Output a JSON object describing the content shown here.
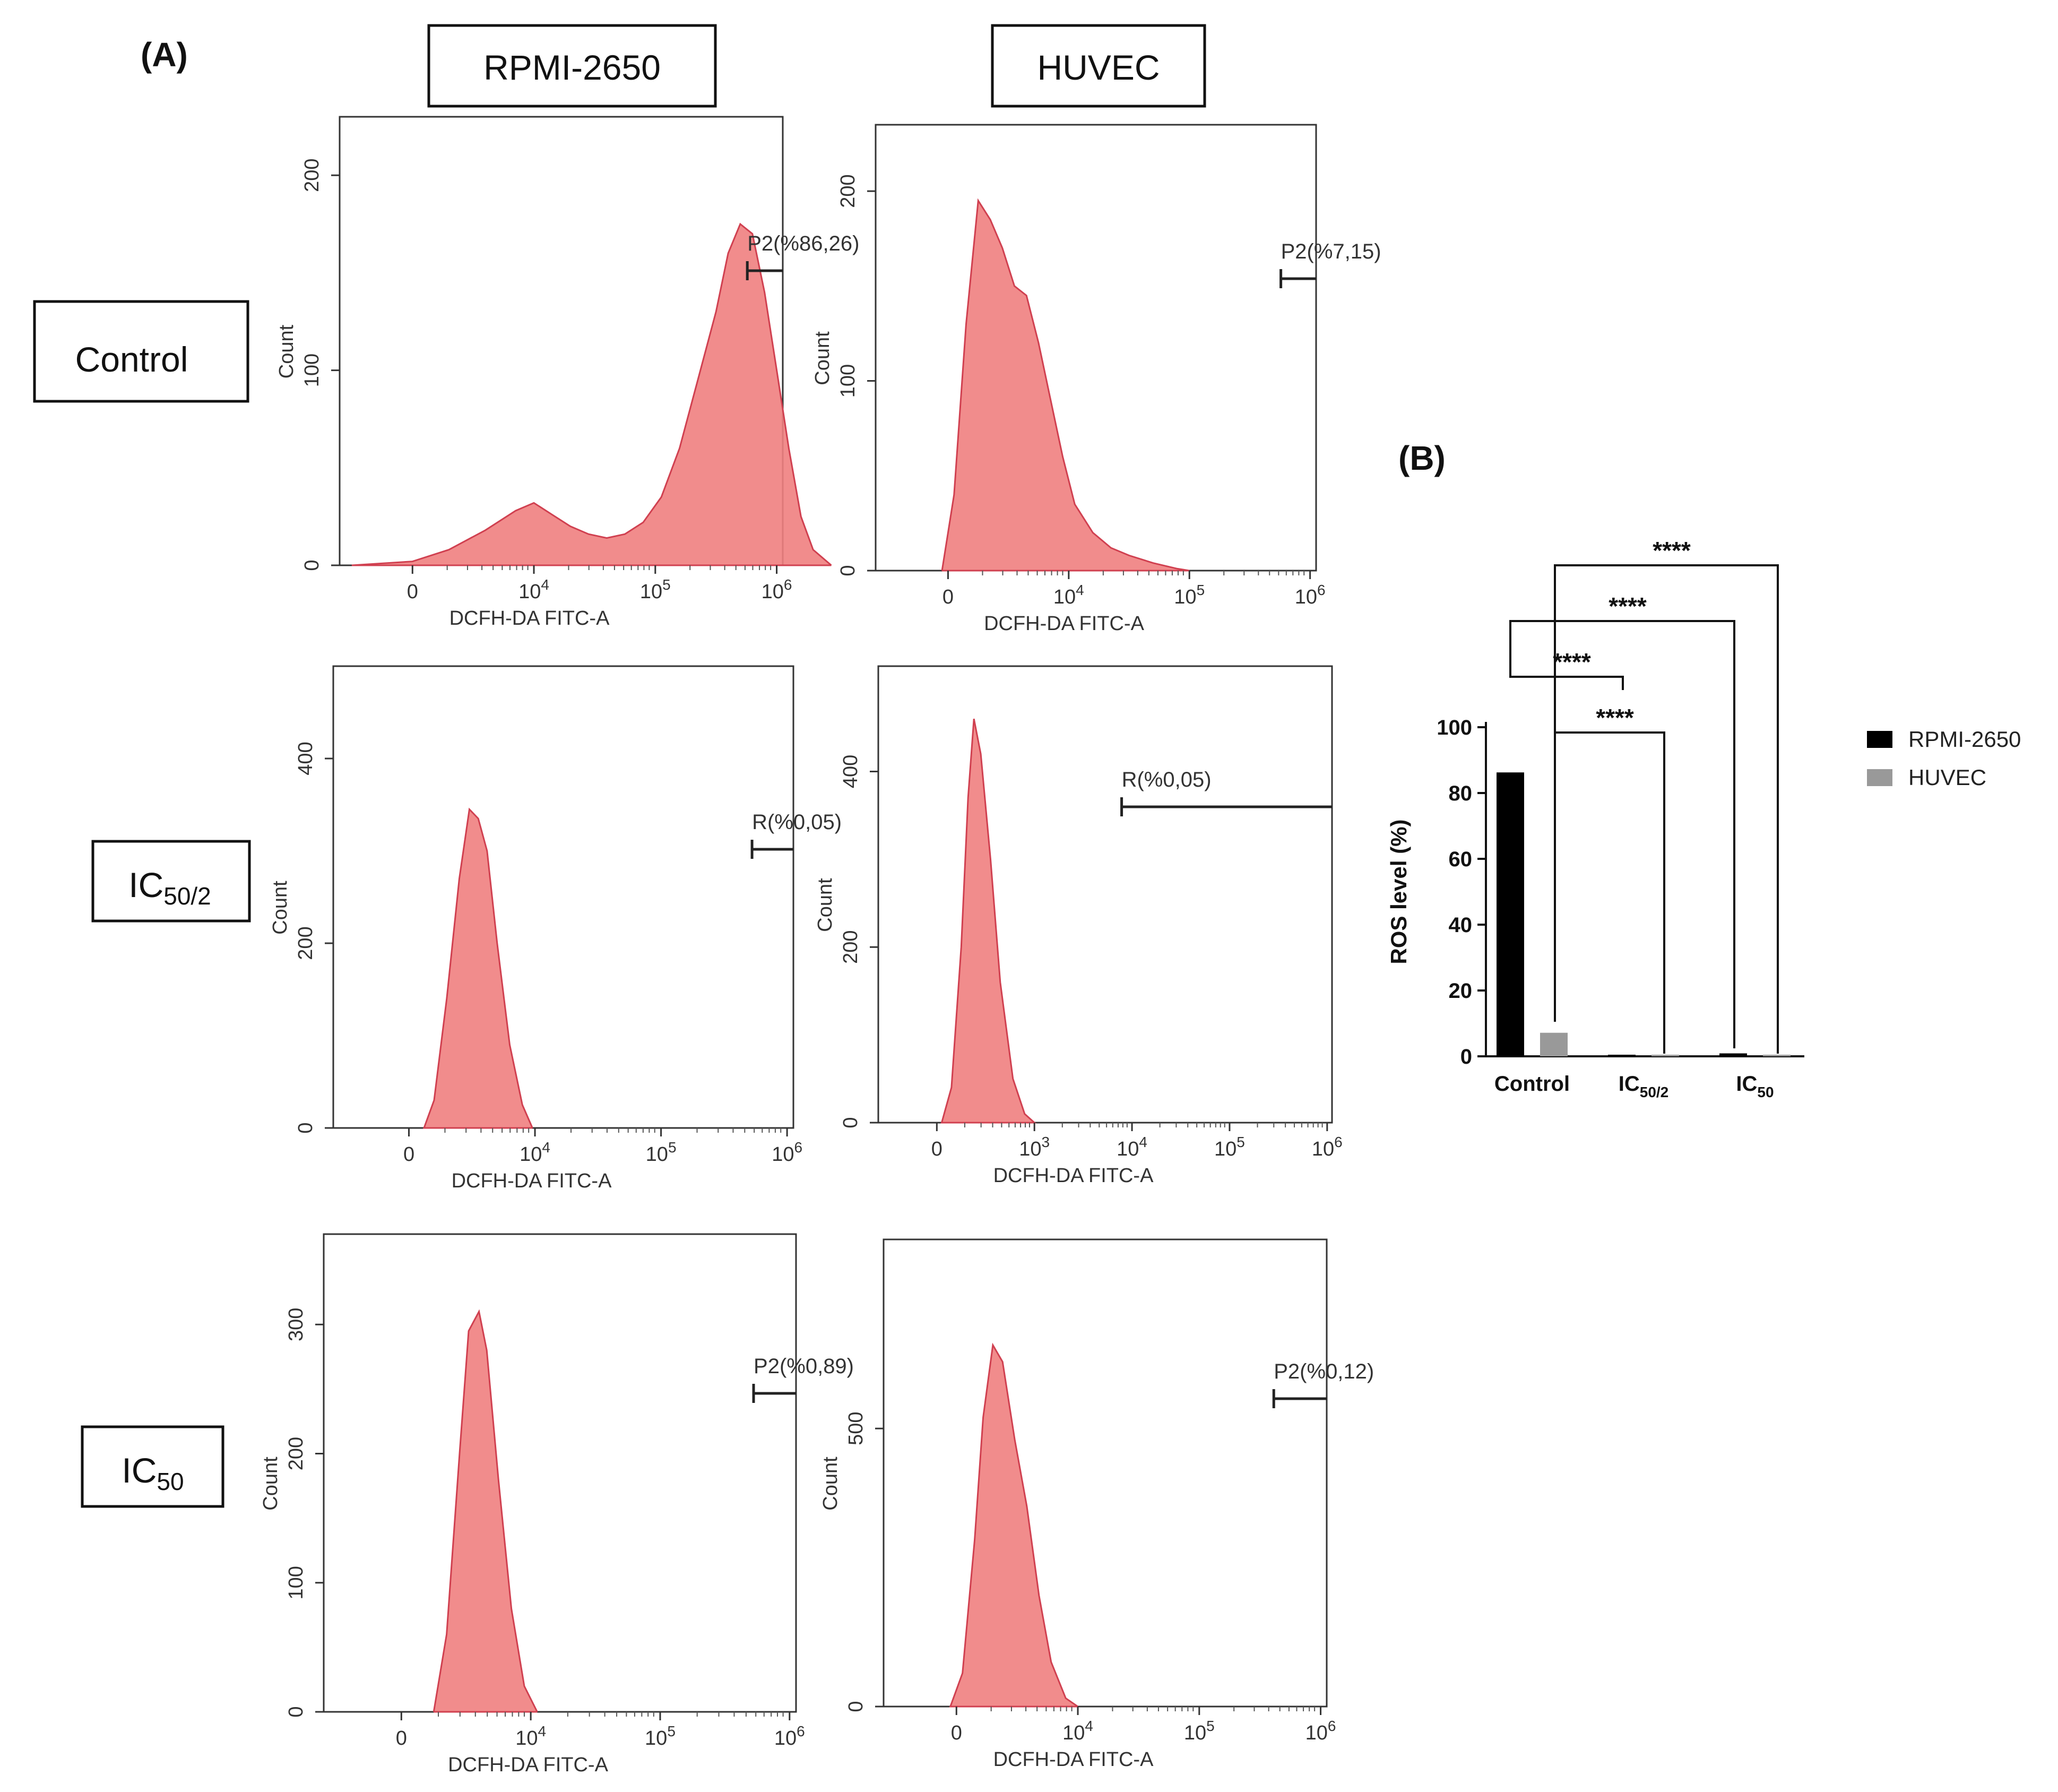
{
  "panel_a": {
    "letter": "(A)",
    "columns": [
      "RPMI-2650",
      "HUVEC"
    ],
    "rows": [
      {
        "name": "Control",
        "base": "Control",
        "sub": ""
      },
      {
        "name": "IC50/2",
        "base": "IC",
        "sub": "50/2"
      },
      {
        "name": "IC50",
        "base": "IC",
        "sub": "50"
      }
    ]
  },
  "panel_b": {
    "letter": "(B)"
  },
  "colors": {
    "histogram_fill": "#f08080",
    "histogram_stroke": "#d04050",
    "rpmi_bar": "#000000",
    "huvec_bar": "#999999"
  },
  "chart_data": [
    {
      "type": "histogram",
      "id": "rpmi-control",
      "cell_line": "RPMI-2650",
      "treatment": "Control",
      "xlabel": "DCFH-DA FITC-A",
      "ylabel": "Count",
      "x_ticks": [
        {
          "main": "0",
          "sup": ""
        },
        {
          "main": "10",
          "sup": "4"
        },
        {
          "main": "10",
          "sup": "5"
        },
        {
          "main": "10",
          "sup": "6"
        }
      ],
      "y_ticks": [
        "0",
        "100",
        "200"
      ],
      "ymax": 230,
      "gate": {
        "label": "P2(%86,26)",
        "start_decade": 3.9
      },
      "curve": [
        [
          -0.5,
          0
        ],
        [
          0,
          2
        ],
        [
          0.3,
          8
        ],
        [
          0.6,
          18
        ],
        [
          0.85,
          28
        ],
        [
          1.0,
          32
        ],
        [
          1.15,
          26
        ],
        [
          1.3,
          20
        ],
        [
          1.45,
          16
        ],
        [
          1.6,
          14
        ],
        [
          1.75,
          16
        ],
        [
          1.9,
          22
        ],
        [
          2.05,
          35
        ],
        [
          2.2,
          60
        ],
        [
          2.35,
          95
        ],
        [
          2.5,
          130
        ],
        [
          2.6,
          160
        ],
        [
          2.7,
          175
        ],
        [
          2.8,
          170
        ],
        [
          2.9,
          140
        ],
        [
          3.0,
          100
        ],
        [
          3.1,
          60
        ],
        [
          3.2,
          25
        ],
        [
          3.3,
          8
        ],
        [
          3.45,
          0
        ]
      ]
    },
    {
      "type": "histogram",
      "id": "huvec-control",
      "cell_line": "HUVEC",
      "treatment": "Control",
      "xlabel": "DCFH-DA FITC-A",
      "ylabel": "Count",
      "x_ticks": [
        {
          "main": "0",
          "sup": ""
        },
        {
          "main": "10",
          "sup": "4"
        },
        {
          "main": "10",
          "sup": "5"
        },
        {
          "main": "10",
          "sup": "6"
        }
      ],
      "y_ticks": [
        "0",
        "100",
        "200"
      ],
      "ymax": 235,
      "gate": {
        "label": "P2(%7,15)",
        "start_decade": 3.9
      },
      "curve": [
        [
          -0.05,
          0
        ],
        [
          0.05,
          40
        ],
        [
          0.15,
          130
        ],
        [
          0.25,
          195
        ],
        [
          0.35,
          185
        ],
        [
          0.45,
          170
        ],
        [
          0.55,
          150
        ],
        [
          0.65,
          145
        ],
        [
          0.75,
          120
        ],
        [
          0.85,
          90
        ],
        [
          0.95,
          60
        ],
        [
          1.05,
          35
        ],
        [
          1.2,
          20
        ],
        [
          1.35,
          12
        ],
        [
          1.5,
          8
        ],
        [
          1.7,
          4
        ],
        [
          1.9,
          1
        ],
        [
          2.0,
          0
        ]
      ]
    },
    {
      "type": "histogram",
      "id": "rpmi-ic50-2",
      "cell_line": "RPMI-2650",
      "treatment": "IC50/2",
      "xlabel": "DCFH-DA FITC-A",
      "ylabel": "Count",
      "x_ticks": [
        {
          "main": "0",
          "sup": ""
        },
        {
          "main": "10",
          "sup": "4"
        },
        {
          "main": "10",
          "sup": "5"
        },
        {
          "main": "10",
          "sup": "6"
        }
      ],
      "y_ticks": [
        "0",
        "200",
        "400"
      ],
      "ymax": 500,
      "gate": {
        "label": "R(%0,05)",
        "start_decade": 3.85
      },
      "curve": [
        [
          0.12,
          0
        ],
        [
          0.2,
          30
        ],
        [
          0.3,
          140
        ],
        [
          0.4,
          270
        ],
        [
          0.48,
          345
        ],
        [
          0.55,
          335
        ],
        [
          0.62,
          300
        ],
        [
          0.7,
          200
        ],
        [
          0.8,
          90
        ],
        [
          0.9,
          25
        ],
        [
          0.98,
          0
        ]
      ]
    },
    {
      "type": "histogram",
      "id": "huvec-ic50-2",
      "cell_line": "HUVEC",
      "treatment": "IC50/2",
      "xlabel": "DCFH-DA FITC-A",
      "ylabel": "Count",
      "x_ticks": [
        {
          "main": "0",
          "sup": ""
        },
        {
          "main": "10",
          "sup": "3"
        },
        {
          "main": "10",
          "sup": "4"
        },
        {
          "main": "10",
          "sup": "5"
        },
        {
          "main": "10",
          "sup": "6"
        }
      ],
      "y_ticks": [
        "0",
        "200",
        "400"
      ],
      "ymax": 520,
      "gate": {
        "label": "R(%0,05)",
        "start_decade": 2.7
      },
      "curve": [
        [
          0.05,
          0
        ],
        [
          0.15,
          40
        ],
        [
          0.25,
          200
        ],
        [
          0.32,
          370
        ],
        [
          0.38,
          460
        ],
        [
          0.45,
          420
        ],
        [
          0.55,
          300
        ],
        [
          0.65,
          160
        ],
        [
          0.78,
          50
        ],
        [
          0.9,
          10
        ],
        [
          1.0,
          0
        ]
      ]
    },
    {
      "type": "histogram",
      "id": "rpmi-ic50",
      "cell_line": "RPMI-2650",
      "treatment": "IC50",
      "xlabel": "DCFH-DA FITC-A",
      "ylabel": "Count",
      "x_ticks": [
        {
          "main": "0",
          "sup": ""
        },
        {
          "main": "10",
          "sup": "4"
        },
        {
          "main": "10",
          "sup": "5"
        },
        {
          "main": "10",
          "sup": "6"
        }
      ],
      "y_ticks": [
        "0",
        "100",
        "200",
        "300"
      ],
      "ymax": 370,
      "gate": {
        "label": "P2(%0,89)",
        "start_decade": 3.85
      },
      "curve": [
        [
          0.25,
          0
        ],
        [
          0.35,
          60
        ],
        [
          0.45,
          200
        ],
        [
          0.52,
          295
        ],
        [
          0.6,
          310
        ],
        [
          0.66,
          280
        ],
        [
          0.75,
          180
        ],
        [
          0.85,
          80
        ],
        [
          0.95,
          20
        ],
        [
          1.05,
          0
        ]
      ]
    },
    {
      "type": "histogram",
      "id": "huvec-ic50",
      "cell_line": "HUVEC",
      "treatment": "IC50",
      "xlabel": "DCFH-DA FITC-A",
      "ylabel": "Count",
      "x_ticks": [
        {
          "main": "0",
          "sup": ""
        },
        {
          "main": "10",
          "sup": "4"
        },
        {
          "main": "10",
          "sup": "5"
        },
        {
          "main": "10",
          "sup": "6"
        }
      ],
      "y_ticks": [
        "0",
        "500"
      ],
      "ymax": 840,
      "gate": {
        "label": "P2(%0,12)",
        "start_decade": 3.7
      },
      "curve": [
        [
          -0.05,
          0
        ],
        [
          0.05,
          60
        ],
        [
          0.15,
          300
        ],
        [
          0.22,
          520
        ],
        [
          0.3,
          650
        ],
        [
          0.38,
          620
        ],
        [
          0.48,
          480
        ],
        [
          0.58,
          360
        ],
        [
          0.68,
          200
        ],
        [
          0.78,
          80
        ],
        [
          0.9,
          15
        ],
        [
          1.0,
          0
        ]
      ]
    },
    {
      "type": "bar",
      "id": "ros-levels",
      "categories": [
        {
          "main": "Control",
          "sub": ""
        },
        {
          "main": "IC",
          "sub": "50/2"
        },
        {
          "main": "IC",
          "sub": "50"
        }
      ],
      "series": [
        {
          "name": "RPMI-2650",
          "values": [
            86.26,
            0.05,
            0.89
          ]
        },
        {
          "name": "HUVEC",
          "values": [
            7.15,
            0.05,
            0.12
          ]
        }
      ],
      "ylabel": "ROS level (%)",
      "ylim": [
        0,
        100
      ],
      "y_ticks": [
        "0",
        "20",
        "40",
        "60",
        "80",
        "100"
      ],
      "significance": [
        "****",
        "****",
        "****",
        "****"
      ]
    }
  ]
}
